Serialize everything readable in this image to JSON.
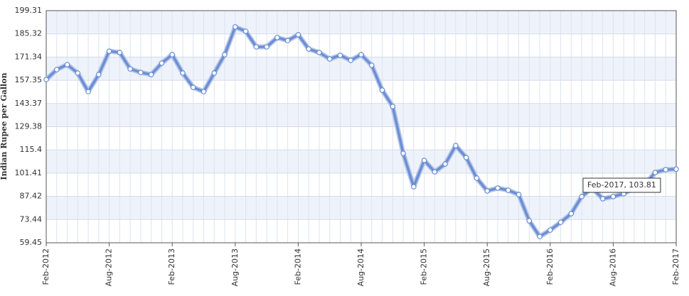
{
  "chart_data": {
    "type": "line",
    "y_label": "Indian Rupee per Gallon",
    "categories": [
      "Feb-2012",
      null,
      null,
      null,
      null,
      null,
      "Aug-2012",
      null,
      null,
      null,
      null,
      null,
      "Feb-2013",
      null,
      null,
      null,
      null,
      null,
      "Aug-2013",
      null,
      null,
      null,
      null,
      null,
      "Feb-2014",
      null,
      null,
      null,
      null,
      null,
      "Aug-2014",
      null,
      null,
      null,
      null,
      null,
      "Feb-2015",
      null,
      null,
      null,
      null,
      null,
      "Aug-2015",
      null,
      null,
      null,
      null,
      null,
      "Feb-2016",
      null,
      null,
      null,
      null,
      null,
      "Aug-2016",
      null,
      null,
      null,
      null,
      null,
      "Feb-2017"
    ],
    "series": [
      {
        "name": "Indian Rupee per Gallon",
        "color": "#6b8ed6",
        "values": [
          157.8,
          163.8,
          166.8,
          161.7,
          150.5,
          160.8,
          174.9,
          174.1,
          164.2,
          162.1,
          160.8,
          167.7,
          172.8,
          161.7,
          153.1,
          150.5,
          161.7,
          172.8,
          189.5,
          186.9,
          177.5,
          177.5,
          183.1,
          181.3,
          184.8,
          176.2,
          174.1,
          170.2,
          172.4,
          169.4,
          172.8,
          166.4,
          151.4,
          141.6,
          113.3,
          93.2,
          109.1,
          102.2,
          106.9,
          118.0,
          110.8,
          98.4,
          90.7,
          92.4,
          91.1,
          88.5,
          72.7,
          63.2,
          67.1,
          71.8,
          77.0,
          87.3,
          92.4,
          86.0,
          87.3,
          89.0,
          92.4,
          94.5,
          101.8,
          103.5,
          103.81
        ]
      }
    ],
    "ylim": [
      59.45,
      199.31
    ],
    "yticks": [
      59.45,
      73.44,
      87.42,
      101.41,
      115.4,
      129.38,
      143.37,
      157.35,
      171.34,
      185.32,
      199.31
    ],
    "grid": true,
    "tooltip": "Feb-2017, 103.81"
  }
}
